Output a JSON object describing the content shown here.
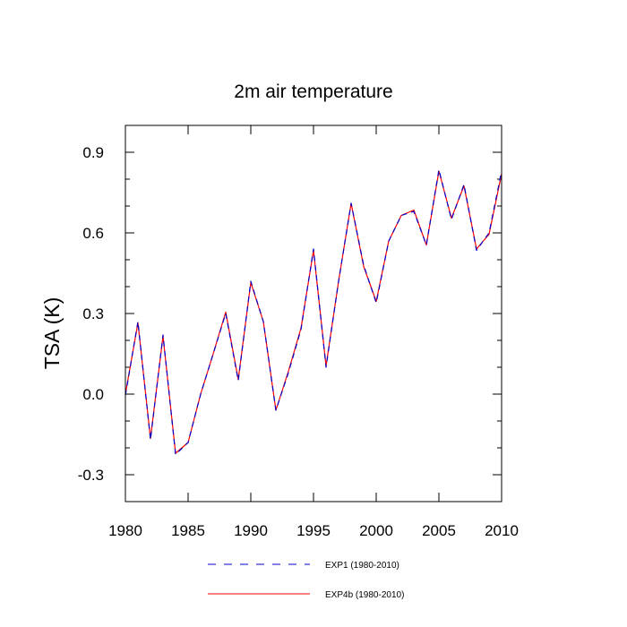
{
  "chart_data": {
    "type": "line",
    "title": "2m air temperature",
    "xlabel": "",
    "ylabel": "TSA  (K)",
    "xlim": [
      1980,
      2010
    ],
    "ylim": [
      -0.4,
      1.0
    ],
    "x_ticks": [
      1980,
      1985,
      1990,
      1995,
      2000,
      2005,
      2010
    ],
    "y_ticks": [
      -0.3,
      0.0,
      0.3,
      0.6,
      0.9
    ],
    "y_tick_labels": [
      "-0.3",
      "0.0",
      "0.3",
      "0.6",
      "0.9"
    ],
    "x": [
      1980,
      1981,
      1982,
      1983,
      1984,
      1985,
      1986,
      1987,
      1988,
      1989,
      1990,
      1991,
      1992,
      1993,
      1994,
      1995,
      1996,
      1997,
      1998,
      1999,
      2000,
      2001,
      2002,
      2003,
      2004,
      2005,
      2006,
      2007,
      2008,
      2009,
      2010
    ],
    "series": [
      {
        "name": "EXP1 (1980-2010)",
        "color": "#0000cc",
        "style": "dashed",
        "values": [
          -0.005,
          0.27,
          -0.17,
          0.22,
          -0.225,
          -0.18,
          0.0,
          0.15,
          0.3,
          0.05,
          0.42,
          0.27,
          -0.06,
          0.08,
          0.24,
          0.54,
          0.1,
          0.42,
          0.71,
          0.48,
          0.34,
          0.57,
          0.665,
          0.68,
          0.555,
          0.835,
          0.65,
          0.78,
          0.535,
          0.6,
          0.83
        ]
      },
      {
        "name": "EXP4b (1980-2010)",
        "color": "#ff0000",
        "style": "solid",
        "values": [
          0.0,
          0.265,
          -0.165,
          0.215,
          -0.22,
          -0.18,
          0.0,
          0.15,
          0.305,
          0.055,
          0.415,
          0.27,
          -0.06,
          0.085,
          0.245,
          0.535,
          0.105,
          0.42,
          0.71,
          0.475,
          0.345,
          0.57,
          0.665,
          0.685,
          0.555,
          0.83,
          0.655,
          0.775,
          0.54,
          0.595,
          0.82
        ]
      }
    ],
    "legend_position": "bottom"
  }
}
